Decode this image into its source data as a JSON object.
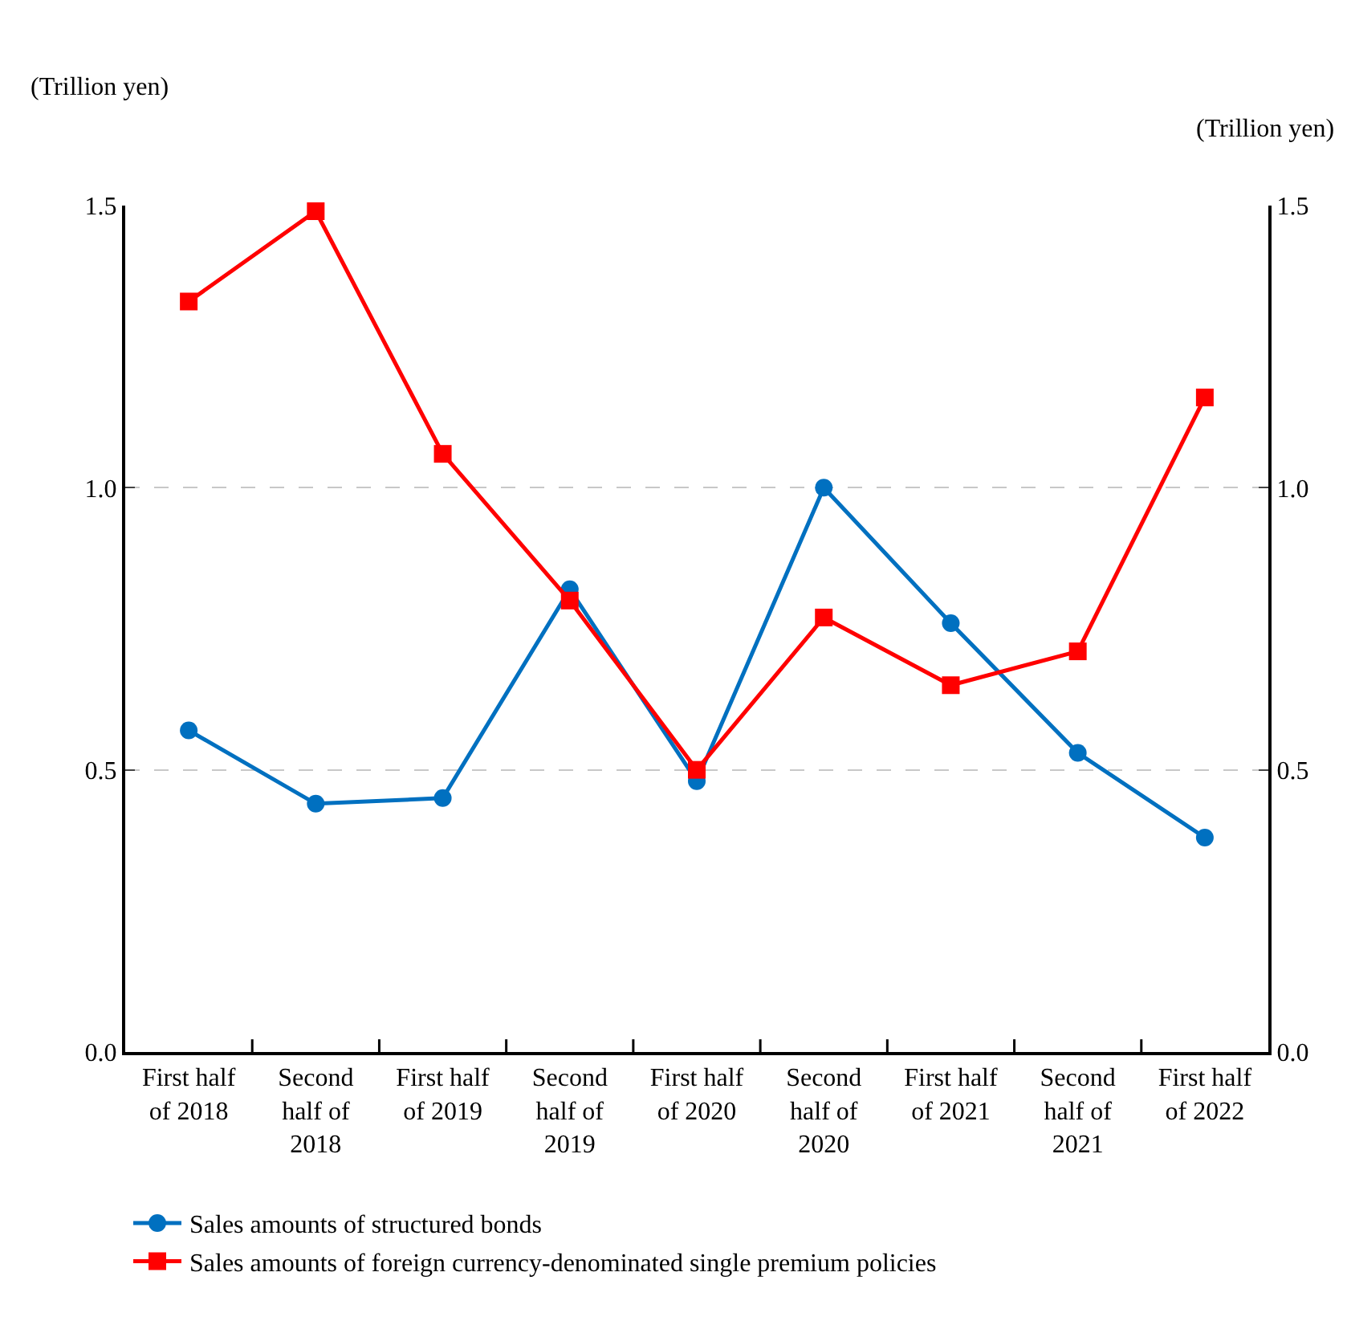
{
  "chart_data": {
    "type": "line",
    "ylabel": "(Trillion yen)",
    "y2label": "(Trillion yen)",
    "categories": [
      "First half of 2018",
      "Second half of 2018",
      "First half of 2019",
      "Second half of 2019",
      "First half of 2020",
      "Second half of 2020",
      "First half of 2021",
      "Second half of 2021",
      "First half of 2022"
    ],
    "series": [
      {
        "name": "Sales amounts of structured bonds",
        "color": "#0070c0",
        "marker": "circle",
        "values": [
          0.57,
          0.44,
          0.45,
          0.82,
          0.48,
          1.0,
          0.76,
          0.53,
          0.38
        ]
      },
      {
        "name": "Sales amounts of foreign currency-denominated single premium policies",
        "color": "#ff0000",
        "marker": "square",
        "values": [
          1.33,
          1.49,
          1.06,
          0.8,
          0.5,
          0.77,
          0.65,
          0.71,
          1.16
        ]
      }
    ],
    "ylim": [
      0,
      1.5
    ],
    "yticks": [
      {
        "value": 0,
        "label": "0.0"
      },
      {
        "value": 0.5,
        "label": "0.5"
      },
      {
        "value": 1,
        "label": "1.0"
      },
      {
        "value": 1.5,
        "label": "1.5"
      }
    ],
    "y2lim": [
      0,
      1.5
    ],
    "y2ticks": [
      {
        "value": 0,
        "label": "0.0"
      },
      {
        "value": 0.5,
        "label": "0.5"
      },
      {
        "value": 1,
        "label": "1.0"
      },
      {
        "value": 1.5,
        "label": "1.5"
      }
    ],
    "grid": "y",
    "legend": "bottom",
    "line_style": "solid"
  }
}
